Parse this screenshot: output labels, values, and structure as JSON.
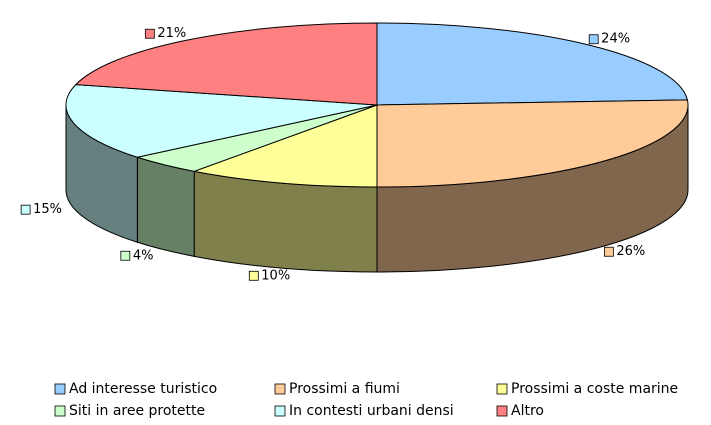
{
  "chart_data": {
    "type": "pie3d",
    "categories": [
      "Ad interesse turistico",
      "Prossimi a fiumi",
      "Prossimi a coste marine",
      "Siti in aree protette",
      "In contesti urbani densi",
      "Altro"
    ],
    "values": [
      24,
      26,
      10,
      4,
      15,
      21
    ],
    "value_labels": [
      "24%",
      "26%",
      "10%",
      "4%",
      "15%",
      "21%"
    ],
    "colors": [
      "#99ccff",
      "#ffcc99",
      "#ffff99",
      "#ccffcc",
      "#ccffff",
      "#ff8080"
    ],
    "legend": "bottom"
  }
}
